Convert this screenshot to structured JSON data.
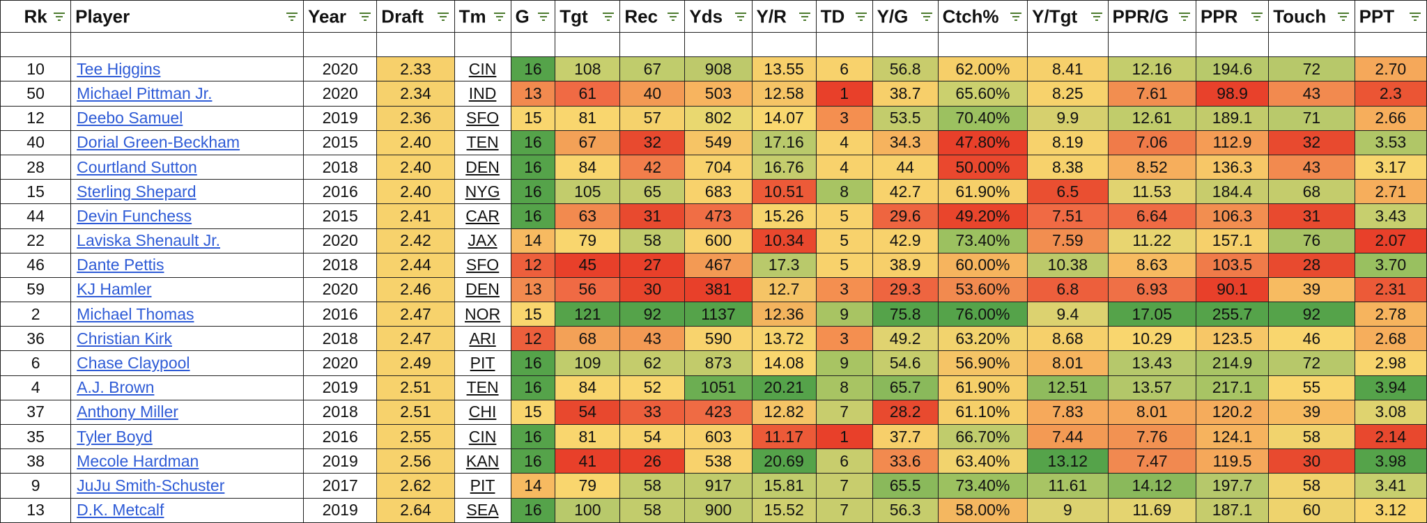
{
  "table": {
    "columns": [
      {
        "key": "rk",
        "label": "Rk",
        "width": 100
      },
      {
        "key": "player",
        "label": "Player",
        "width": 330
      },
      {
        "key": "year",
        "label": "Year",
        "width": 104
      },
      {
        "key": "draft",
        "label": "Draft",
        "width": 110
      },
      {
        "key": "tm",
        "label": "Tm",
        "width": 80
      },
      {
        "key": "g",
        "label": "G",
        "width": 63
      },
      {
        "key": "tgt",
        "label": "Tgt",
        "width": 92
      },
      {
        "key": "rec",
        "label": "Rec",
        "width": 92
      },
      {
        "key": "yds",
        "label": "Yds",
        "width": 95
      },
      {
        "key": "yr",
        "label": "Y/R",
        "width": 91
      },
      {
        "key": "td",
        "label": "TD",
        "width": 80
      },
      {
        "key": "yg",
        "label": "Y/G",
        "width": 93
      },
      {
        "key": "ctch",
        "label": "Ctch%",
        "width": 127
      },
      {
        "key": "ytgt",
        "label": "Y/Tgt",
        "width": 114
      },
      {
        "key": "pprg",
        "label": "PPR/G",
        "width": 125
      },
      {
        "key": "ppr",
        "label": "PPR",
        "width": 103
      },
      {
        "key": "touch",
        "label": "Touch",
        "width": 122
      },
      {
        "key": "ppt",
        "label": "PPT",
        "width": 102
      }
    ],
    "rows": [
      {
        "rk": "10",
        "player": "Tee Higgins",
        "year": "2020",
        "draft": "2.33",
        "tm": "CIN",
        "g": "16",
        "tgt": "108",
        "rec": "67",
        "yds": "908",
        "yr": "13.55",
        "td": "6",
        "yg": "56.8",
        "ctch": "62.00%",
        "ytgt": "8.41",
        "pprg": "12.16",
        "ppr": "194.6",
        "touch": "72",
        "ppt": "2.70"
      },
      {
        "rk": "50",
        "player": "Michael Pittman Jr.",
        "year": "2020",
        "draft": "2.34",
        "tm": "IND",
        "g": "13",
        "tgt": "61",
        "rec": "40",
        "yds": "503",
        "yr": "12.58",
        "td": "1",
        "yg": "38.7",
        "ctch": "65.60%",
        "ytgt": "8.25",
        "pprg": "7.61",
        "ppr": "98.9",
        "touch": "43",
        "ppt": "2.3"
      },
      {
        "rk": "12",
        "player": "Deebo Samuel",
        "year": "2019",
        "draft": "2.36",
        "tm": "SFO",
        "g": "15",
        "tgt": "81",
        "rec": "57",
        "yds": "802",
        "yr": "14.07",
        "td": "3",
        "yg": "53.5",
        "ctch": "70.40%",
        "ytgt": "9.9",
        "pprg": "12.61",
        "ppr": "189.1",
        "touch": "71",
        "ppt": "2.66"
      },
      {
        "rk": "40",
        "player": "Dorial Green-Beckham",
        "year": "2015",
        "draft": "2.40",
        "tm": "TEN",
        "g": "16",
        "tgt": "67",
        "rec": "32",
        "yds": "549",
        "yr": "17.16",
        "td": "4",
        "yg": "34.3",
        "ctch": "47.80%",
        "ytgt": "8.19",
        "pprg": "7.06",
        "ppr": "112.9",
        "touch": "32",
        "ppt": "3.53"
      },
      {
        "rk": "28",
        "player": "Courtland Sutton",
        "year": "2018",
        "draft": "2.40",
        "tm": "DEN",
        "g": "16",
        "tgt": "84",
        "rec": "42",
        "yds": "704",
        "yr": "16.76",
        "td": "4",
        "yg": "44",
        "ctch": "50.00%",
        "ytgt": "8.38",
        "pprg": "8.52",
        "ppr": "136.3",
        "touch": "43",
        "ppt": "3.17"
      },
      {
        "rk": "15",
        "player": "Sterling Shepard",
        "year": "2016",
        "draft": "2.40",
        "tm": "NYG",
        "g": "16",
        "tgt": "105",
        "rec": "65",
        "yds": "683",
        "yr": "10.51",
        "td": "8",
        "yg": "42.7",
        "ctch": "61.90%",
        "ytgt": "6.5",
        "pprg": "11.53",
        "ppr": "184.4",
        "touch": "68",
        "ppt": "2.71"
      },
      {
        "rk": "44",
        "player": "Devin Funchess",
        "year": "2015",
        "draft": "2.41",
        "tm": "CAR",
        "g": "16",
        "tgt": "63",
        "rec": "31",
        "yds": "473",
        "yr": "15.26",
        "td": "5",
        "yg": "29.6",
        "ctch": "49.20%",
        "ytgt": "7.51",
        "pprg": "6.64",
        "ppr": "106.3",
        "touch": "31",
        "ppt": "3.43"
      },
      {
        "rk": "22",
        "player": "Laviska Shenault Jr.",
        "year": "2020",
        "draft": "2.42",
        "tm": "JAX",
        "g": "14",
        "tgt": "79",
        "rec": "58",
        "yds": "600",
        "yr": "10.34",
        "td": "5",
        "yg": "42.9",
        "ctch": "73.40%",
        "ytgt": "7.59",
        "pprg": "11.22",
        "ppr": "157.1",
        "touch": "76",
        "ppt": "2.07"
      },
      {
        "rk": "46",
        "player": "Dante Pettis",
        "year": "2018",
        "draft": "2.44",
        "tm": "SFO",
        "g": "12",
        "tgt": "45",
        "rec": "27",
        "yds": "467",
        "yr": "17.3",
        "td": "5",
        "yg": "38.9",
        "ctch": "60.00%",
        "ytgt": "10.38",
        "pprg": "8.63",
        "ppr": "103.5",
        "touch": "28",
        "ppt": "3.70"
      },
      {
        "rk": "59",
        "player": "KJ Hamler",
        "year": "2020",
        "draft": "2.46",
        "tm": "DEN",
        "g": "13",
        "tgt": "56",
        "rec": "30",
        "yds": "381",
        "yr": "12.7",
        "td": "3",
        "yg": "29.3",
        "ctch": "53.60%",
        "ytgt": "6.8",
        "pprg": "6.93",
        "ppr": "90.1",
        "touch": "39",
        "ppt": "2.31"
      },
      {
        "rk": "2",
        "player": "Michael Thomas",
        "year": "2016",
        "draft": "2.47",
        "tm": "NOR",
        "g": "15",
        "tgt": "121",
        "rec": "92",
        "yds": "1137",
        "yr": "12.36",
        "td": "9",
        "yg": "75.8",
        "ctch": "76.00%",
        "ytgt": "9.4",
        "pprg": "17.05",
        "ppr": "255.7",
        "touch": "92",
        "ppt": "2.78"
      },
      {
        "rk": "36",
        "player": "Christian Kirk",
        "year": "2018",
        "draft": "2.47",
        "tm": "ARI",
        "g": "12",
        "tgt": "68",
        "rec": "43",
        "yds": "590",
        "yr": "13.72",
        "td": "3",
        "yg": "49.2",
        "ctch": "63.20%",
        "ytgt": "8.68",
        "pprg": "10.29",
        "ppr": "123.5",
        "touch": "46",
        "ppt": "2.68"
      },
      {
        "rk": "6",
        "player": "Chase Claypool",
        "year": "2020",
        "draft": "2.49",
        "tm": "PIT",
        "g": "16",
        "tgt": "109",
        "rec": "62",
        "yds": "873",
        "yr": "14.08",
        "td": "9",
        "yg": "54.6",
        "ctch": "56.90%",
        "ytgt": "8.01",
        "pprg": "13.43",
        "ppr": "214.9",
        "touch": "72",
        "ppt": "2.98"
      },
      {
        "rk": "4",
        "player": "A.J. Brown",
        "year": "2019",
        "draft": "2.51",
        "tm": "TEN",
        "g": "16",
        "tgt": "84",
        "rec": "52",
        "yds": "1051",
        "yr": "20.21",
        "td": "8",
        "yg": "65.7",
        "ctch": "61.90%",
        "ytgt": "12.51",
        "pprg": "13.57",
        "ppr": "217.1",
        "touch": "55",
        "ppt": "3.94"
      },
      {
        "rk": "37",
        "player": "Anthony Miller",
        "year": "2018",
        "draft": "2.51",
        "tm": "CHI",
        "g": "15",
        "tgt": "54",
        "rec": "33",
        "yds": "423",
        "yr": "12.82",
        "td": "7",
        "yg": "28.2",
        "ctch": "61.10%",
        "ytgt": "7.83",
        "pprg": "8.01",
        "ppr": "120.2",
        "touch": "39",
        "ppt": "3.08"
      },
      {
        "rk": "35",
        "player": "Tyler Boyd",
        "year": "2016",
        "draft": "2.55",
        "tm": "CIN",
        "g": "16",
        "tgt": "81",
        "rec": "54",
        "yds": "603",
        "yr": "11.17",
        "td": "1",
        "yg": "37.7",
        "ctch": "66.70%",
        "ytgt": "7.44",
        "pprg": "7.76",
        "ppr": "124.1",
        "touch": "58",
        "ppt": "2.14"
      },
      {
        "rk": "38",
        "player": "Mecole Hardman",
        "year": "2019",
        "draft": "2.56",
        "tm": "KAN",
        "g": "16",
        "tgt": "41",
        "rec": "26",
        "yds": "538",
        "yr": "20.69",
        "td": "6",
        "yg": "33.6",
        "ctch": "63.40%",
        "ytgt": "13.12",
        "pprg": "7.47",
        "ppr": "119.5",
        "touch": "30",
        "ppt": "3.98"
      },
      {
        "rk": "9",
        "player": "JuJu Smith-Schuster",
        "year": "2017",
        "draft": "2.62",
        "tm": "PIT",
        "g": "14",
        "tgt": "79",
        "rec": "58",
        "yds": "917",
        "yr": "15.81",
        "td": "7",
        "yg": "65.5",
        "ctch": "73.40%",
        "ytgt": "11.61",
        "pprg": "14.12",
        "ppr": "197.7",
        "touch": "58",
        "ppt": "3.41"
      },
      {
        "rk": "13",
        "player": "D.K. Metcalf",
        "year": "2019",
        "draft": "2.64",
        "tm": "SEA",
        "g": "16",
        "tgt": "100",
        "rec": "58",
        "yds": "900",
        "yr": "15.52",
        "td": "7",
        "yg": "56.3",
        "ctch": "58.00%",
        "ytgt": "9",
        "pprg": "11.69",
        "ppr": "187.1",
        "touch": "60",
        "ppt": "3.12"
      }
    ],
    "colors": {
      "filter_icon": "#4a7a2c",
      "link": "#2e5bd6",
      "scale_low": "#e8402a",
      "scale_mid": "#fbe07a",
      "scale_high": "#5ca84a"
    },
    "cell_colors": [
      {
        "draft": "#f7d06b",
        "g": "#55a34a",
        "tgt": "#c7cf6e",
        "rec": "#c0cc6c",
        "yds": "#bec96b",
        "yr": "#f7cf6a",
        "td": "#f8d26c",
        "yg": "#c8cc6c",
        "ctch": "#f6cf69",
        "ytgt": "#f6d06b",
        "pprg": "#c4cd6c",
        "ppr": "#b8c96b",
        "touch": "#b7c86a",
        "ppt": "#f5a85a"
      },
      {
        "draft": "#f6d16c",
        "g": "#f28a4f",
        "tgt": "#f06a44",
        "rec": "#f39a54",
        "yds": "#f7b45f",
        "yr": "#f5c466",
        "td": "#e8402a",
        "yg": "#f7cf6a",
        "ctch": "#cbd06e",
        "ytgt": "#f7d26c",
        "pprg": "#f28e50",
        "ppr": "#e8412b",
        "touch": "#f28a4f",
        "ppt": "#eb5534"
      },
      {
        "draft": "#f6d16c",
        "g": "#f9d66e",
        "tgt": "#f9d66e",
        "rec": "#f5d26c",
        "yds": "#e9d870",
        "yr": "#f9d86f",
        "td": "#f48f50",
        "yg": "#c3cc6c",
        "ctch": "#9cc160",
        "ytgt": "#d6d06e",
        "pprg": "#c1cc6b",
        "ppr": "#c2cb6b",
        "touch": "#b9c96b",
        "ppt": "#f6ae5c"
      },
      {
        "draft": "#f8d36d",
        "g": "#55a34a",
        "tgt": "#f3a157",
        "rec": "#e84a2f",
        "yds": "#f6c465",
        "yr": "#b9c96b",
        "td": "#f8d26c",
        "yg": "#f6b35e",
        "ctch": "#e8402a",
        "ytgt": "#f7d26c",
        "pprg": "#f07b49",
        "ppr": "#f59c55",
        "touch": "#e84a2f",
        "ppt": "#b0c667"
      },
      {
        "draft": "#f8d36d",
        "g": "#55a34a",
        "tgt": "#f9d66e",
        "rec": "#f27e4b",
        "yds": "#f8d26c",
        "yr": "#c5cd6d",
        "td": "#f8d26c",
        "yg": "#f8d26c",
        "ctch": "#ea482e",
        "ytgt": "#f7d26c",
        "pprg": "#f6ae5c",
        "ppr": "#f7c767",
        "touch": "#f28a4f",
        "ppt": "#f8d66e"
      },
      {
        "draft": "#f8d36d",
        "g": "#55a34a",
        "tgt": "#c2cc6c",
        "rec": "#c4cc6c",
        "yds": "#f8d26c",
        "yr": "#ec5a38",
        "td": "#a8c463",
        "yg": "#f8d26c",
        "ctch": "#f6cf69",
        "ytgt": "#ea4f31",
        "pprg": "#e1d370",
        "ppr": "#c8cc6c",
        "touch": "#c4cc6c",
        "ppt": "#f6ae5c"
      },
      {
        "draft": "#f7d26c",
        "g": "#55a34a",
        "tgt": "#f28a4f",
        "rec": "#e84a2f",
        "yds": "#f06e45",
        "yr": "#f8d56d",
        "td": "#f8d26c",
        "yg": "#ee6540",
        "ctch": "#e9452c",
        "ytgt": "#f06a44",
        "pprg": "#ef6b44",
        "ppr": "#f28e50",
        "touch": "#e84a2f",
        "ppt": "#c7cf6e"
      },
      {
        "draft": "#f7d26c",
        "g": "#f7ba61",
        "tgt": "#f9d66e",
        "rec": "#c2cc6c",
        "yds": "#f8d26c",
        "yr": "#e9482e",
        "td": "#f8d26c",
        "yg": "#f8d26c",
        "ctch": "#9cc160",
        "ytgt": "#f28e50",
        "pprg": "#e8d570",
        "ppr": "#f6d06b",
        "touch": "#a9c465",
        "ppt": "#e8402a"
      },
      {
        "draft": "#f7d26c",
        "g": "#ed5f3c",
        "tgt": "#e8402a",
        "rec": "#e8402a",
        "yds": "#f39a54",
        "yr": "#b9c96b",
        "td": "#f8d26c",
        "yg": "#f7cf6a",
        "ctch": "#f6b45e",
        "ytgt": "#bcc96a",
        "pprg": "#f7bb61",
        "ppr": "#f07b49",
        "touch": "#e84a2f",
        "ppt": "#99c060"
      },
      {
        "draft": "#f7d26c",
        "g": "#f28a4f",
        "tgt": "#f06a44",
        "rec": "#e8452c",
        "yds": "#e8402a",
        "yr": "#f5c466",
        "td": "#f48f50",
        "yg": "#ee6540",
        "ctch": "#f28a4f",
        "ytgt": "#ed5f3c",
        "pprg": "#ef7046",
        "ppr": "#e8402a",
        "touch": "#f7bb61",
        "ppt": "#ec5a38"
      },
      {
        "draft": "#f7d26c",
        "g": "#f9d66e",
        "tgt": "#55a34a",
        "rec": "#55a34a",
        "yds": "#55a34a",
        "yr": "#f3b45e",
        "td": "#a8c463",
        "yg": "#55a34a",
        "ctch": "#55a34a",
        "ytgt": "#dcd270",
        "pprg": "#55a34a",
        "ppr": "#55a34a",
        "touch": "#55a34a",
        "ppt": "#f6b45e"
      },
      {
        "draft": "#f7d26c",
        "g": "#ed5f3c",
        "tgt": "#f3a157",
        "rec": "#f39a54",
        "yds": "#f8d36d",
        "yr": "#f8d46d",
        "td": "#f48f50",
        "yg": "#e0d370",
        "ctch": "#f2d36d",
        "ytgt": "#f6d06b",
        "pprg": "#f9d66e",
        "ppr": "#f7c767",
        "touch": "#f9d66e",
        "ppt": "#f6ae5c"
      },
      {
        "draft": "#f7d26c",
        "g": "#55a34a",
        "tgt": "#c0cc6c",
        "rec": "#c4cc6c",
        "yds": "#c2cb6b",
        "yr": "#f9d66e",
        "td": "#a8c463",
        "yg": "#c6cd6c",
        "ctch": "#f5c466",
        "ytgt": "#f6b45e",
        "pprg": "#b6c86b",
        "ppr": "#a9c465",
        "touch": "#b7c86a",
        "ppt": "#f8d56d"
      },
      {
        "draft": "#f7d26c",
        "g": "#55a34a",
        "tgt": "#f9d66e",
        "rec": "#f9d66e",
        "yds": "#6cae52",
        "yr": "#55a34a",
        "td": "#a8c463",
        "yg": "#8ab95b",
        "ctch": "#f6cf69",
        "ytgt": "#8fbb5d",
        "pprg": "#b3c769",
        "ppr": "#a8c464",
        "touch": "#f9d66e",
        "ppt": "#55a34a"
      },
      {
        "draft": "#f7d26c",
        "g": "#f9d66e",
        "tgt": "#e8482e",
        "rec": "#ed5f3c",
        "yds": "#ef6b44",
        "yr": "#f5c466",
        "td": "#c8cd6d",
        "yg": "#e84a2f",
        "ctch": "#f6cf69",
        "ytgt": "#f6a95b",
        "pprg": "#f5a75a",
        "ppr": "#f5ac5c",
        "touch": "#f7bb61",
        "ppt": "#dfd36f"
      },
      {
        "draft": "#f7d26c",
        "g": "#55a34a",
        "tgt": "#f9d66e",
        "rec": "#f8d46d",
        "yds": "#f8d26c",
        "yr": "#ec5a38",
        "td": "#e8402a",
        "yg": "#f7cf6a",
        "ctch": "#c0cc6c",
        "ytgt": "#f39a54",
        "pprg": "#f29252",
        "ppr": "#f6b35e",
        "touch": "#f1d36d",
        "ppt": "#e8482e"
      },
      {
        "draft": "#f7d26c",
        "g": "#55a34a",
        "tgt": "#e8402a",
        "rec": "#e8402a",
        "yds": "#f8d26c",
        "yr": "#55a34a",
        "td": "#c8cd6d",
        "yg": "#f28a4f",
        "ctch": "#f2d36d",
        "ytgt": "#55a34a",
        "pprg": "#f18950",
        "ppr": "#f5a85a",
        "touch": "#e84a2f",
        "ppt": "#55a34a"
      },
      {
        "draft": "#f7d26c",
        "g": "#f7ba61",
        "tgt": "#f9d66e",
        "rec": "#c2cc6c",
        "yds": "#c0cb6b",
        "yr": "#c1cc6c",
        "td": "#c8cd6d",
        "yg": "#8ab95b",
        "ctch": "#9cc160",
        "ytgt": "#a8c464",
        "pprg": "#8ab95b",
        "ppr": "#b6c86b",
        "touch": "#f1d36d",
        "ppt": "#c7cf6e"
      },
      {
        "draft": "#f7d26c",
        "g": "#55a34a",
        "tgt": "#b8c96b",
        "rec": "#c2cc6c",
        "yds": "#c0cb6b",
        "yr": "#cfcf6e",
        "td": "#c8cd6d",
        "yg": "#c6cd6c",
        "ctch": "#f4b760",
        "ytgt": "#dcd270",
        "pprg": "#e4d470",
        "ppr": "#c6cc6c",
        "touch": "#eed36d",
        "ppt": "#f8d56d"
      }
    ]
  }
}
